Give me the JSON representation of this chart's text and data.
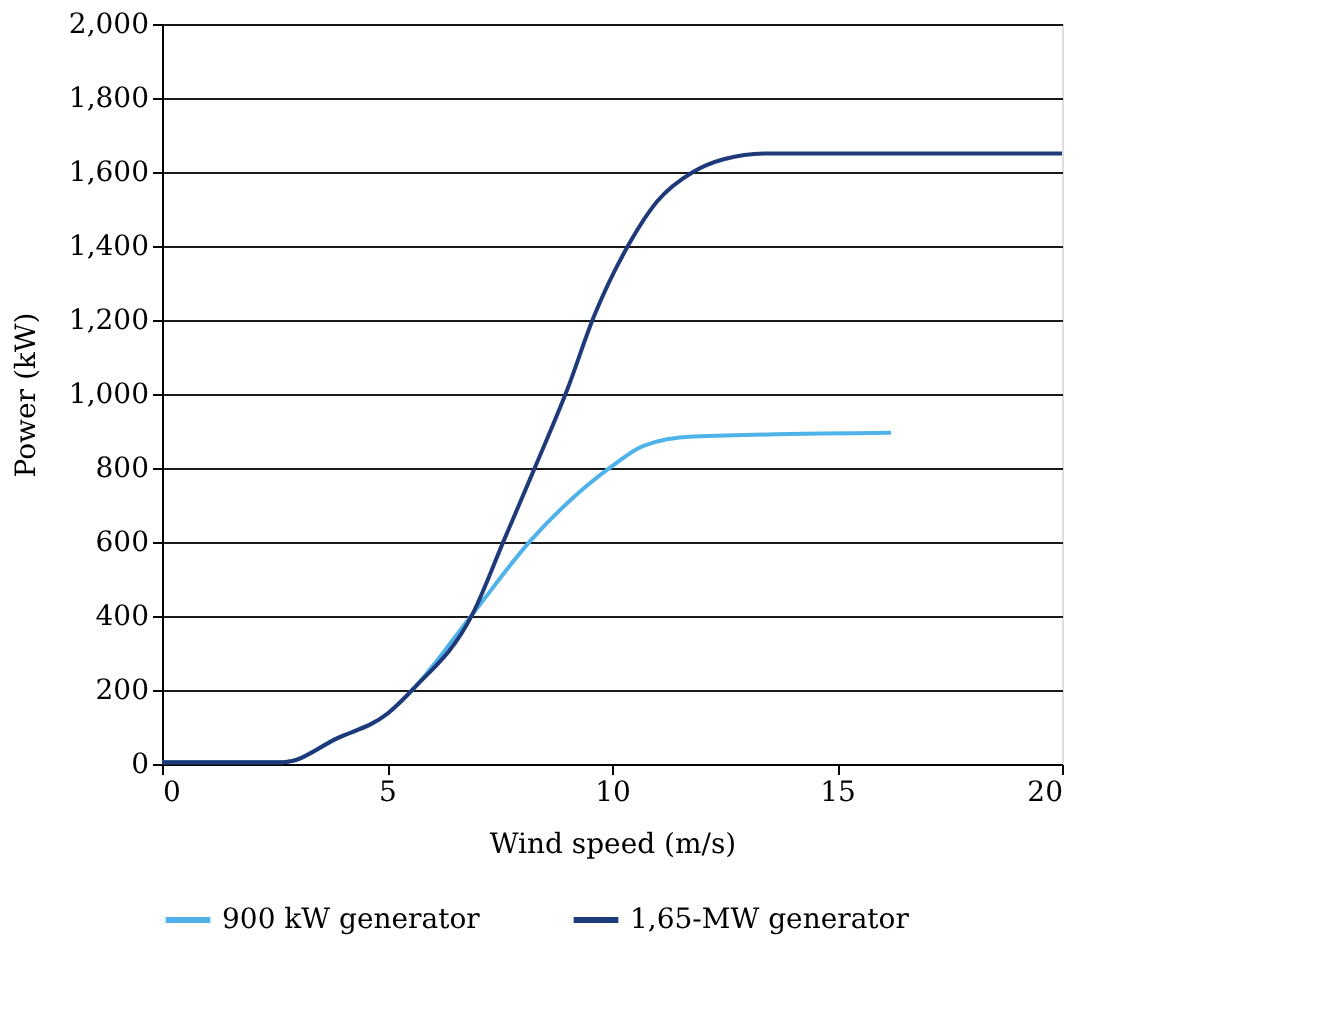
{
  "chart_data": {
    "type": "line",
    "xlabel": "Wind speed (m/s)",
    "ylabel": "Power (kW)",
    "xlim": [
      0,
      20
    ],
    "xticks": [
      0,
      5,
      10,
      15,
      20
    ],
    "ylim": [
      0,
      2000
    ],
    "yticks": [
      {
        "value": 0,
        "label": "0"
      },
      {
        "value": 200,
        "label": "200"
      },
      {
        "value": 400,
        "label": "400"
      },
      {
        "value": 600,
        "label": "600"
      },
      {
        "value": 800,
        "label": "800"
      },
      {
        "value": 1000,
        "label": "1,000"
      },
      {
        "value": 1200,
        "label": "1,200"
      },
      {
        "value": 1400,
        "label": "1,400"
      },
      {
        "value": 1600,
        "label": "1,600"
      },
      {
        "value": 1800,
        "label": "1,800"
      },
      {
        "value": 2000,
        "label": "2,000"
      }
    ],
    "grid": "y",
    "legend": "bottom",
    "marker": "none",
    "line_style": "solid",
    "series": [
      {
        "name": "900 kW generator",
        "color": "#4fb3ea",
        "x": [
          0,
          2.7,
          3.9,
          5,
          5.6,
          6.9,
          8.2,
          10,
          10.7,
          11.8,
          16.2
        ],
        "values": [
          5,
          5,
          70,
          135,
          205,
          405,
          605,
          805,
          860,
          885,
          895
        ]
      },
      {
        "name": "1,65-MW generator",
        "color": "#1f3a7a",
        "x": [
          0,
          2.7,
          3.9,
          5,
          5.6,
          6.9,
          7.6,
          8.3,
          9,
          9.6,
          10.4,
          11,
          11.8,
          12.5,
          13.4,
          20
        ],
        "values": [
          5,
          5,
          70,
          135,
          205,
          405,
          605,
          805,
          1010,
          1210,
          1410,
          1520,
          1600,
          1635,
          1650,
          1650
        ]
      }
    ]
  }
}
